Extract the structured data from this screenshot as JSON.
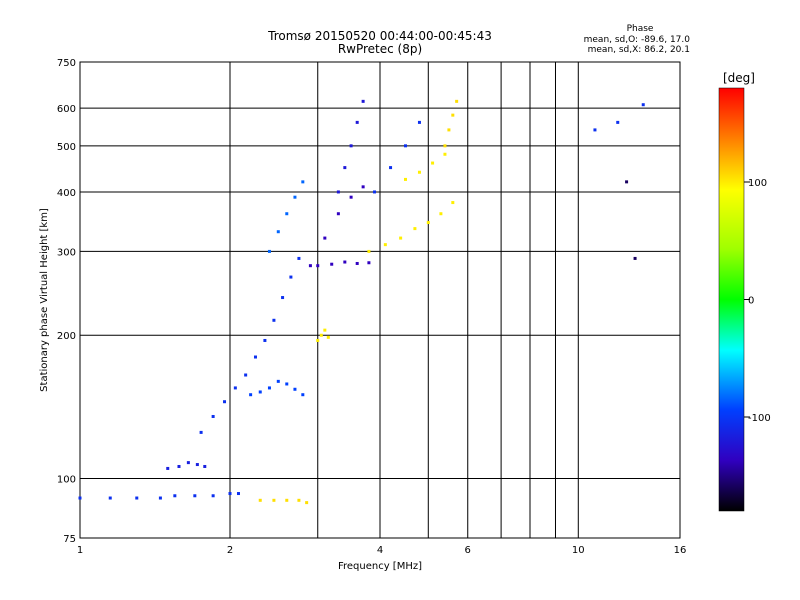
{
  "chart_data": {
    "type": "scatter",
    "title": "Tromsø 20150520 00:44:00-00:45:43",
    "subtitle": "RwPretec (8p)",
    "xlabel": "Frequency [MHz]",
    "ylabel": "Stationary phase Virtual Height [km]",
    "x_scale": "log",
    "y_scale": "log",
    "xlim": [
      1,
      16
    ],
    "ylim": [
      75,
      750
    ],
    "x_ticks": [
      1,
      2,
      4,
      6,
      10,
      16
    ],
    "x_tick_labels": [
      "1",
      "2",
      "4",
      "6",
      "10",
      "16"
    ],
    "x_grid_lines": [
      1,
      2,
      3,
      4,
      5,
      6,
      7,
      8,
      9,
      10,
      16
    ],
    "y_ticks": [
      75,
      100,
      200,
      300,
      400,
      500,
      600,
      750
    ],
    "y_tick_labels": [
      "75",
      "100",
      "200",
      "300",
      "400",
      "500",
      "600",
      "750"
    ],
    "grid": true,
    "phase_info": {
      "heading": "Phase",
      "o_line": "mean, sd,O: -89.6, 17.0",
      "x_line": "mean, sd,X:  86.2, 20.1"
    },
    "colorbar": {
      "label": "[deg]",
      "range": [
        -180,
        180
      ],
      "ticks": [
        100,
        0,
        -100
      ],
      "tick_labels": [
        "100",
        "0",
        "-100"
      ]
    },
    "series": [
      {
        "x": [
          1.0,
          1.15,
          1.3,
          1.45,
          1.55,
          1.7,
          1.85,
          2.0,
          2.08
        ],
        "y": [
          91,
          91,
          91,
          91,
          92,
          92,
          92,
          93,
          93
        ],
        "phase": -110
      },
      {
        "x": [
          1.5,
          1.58,
          1.65,
          1.72,
          1.78
        ],
        "y": [
          105,
          106,
          108,
          107,
          106
        ],
        "phase": -120
      },
      {
        "x": [
          1.75,
          1.85,
          1.95,
          2.05,
          2.15,
          2.25,
          2.35,
          2.45,
          2.55,
          2.65,
          2.75
        ],
        "y": [
          125,
          135,
          145,
          155,
          165,
          180,
          195,
          215,
          240,
          265,
          290
        ],
        "phase": -110
      },
      {
        "x": [
          2.4,
          2.5,
          2.6,
          2.7,
          2.8
        ],
        "y": [
          300,
          330,
          360,
          390,
          420
        ],
        "phase": -90
      },
      {
        "x": [
          2.2,
          2.3,
          2.4,
          2.5,
          2.6,
          2.7,
          2.8
        ],
        "y": [
          150,
          152,
          155,
          160,
          158,
          154,
          150
        ],
        "phase": -100
      },
      {
        "x": [
          2.3,
          2.45,
          2.6,
          2.75,
          2.85
        ],
        "y": [
          90,
          90,
          90,
          90,
          89
        ],
        "phase": 110
      },
      {
        "x": [
          3.0,
          3.05,
          3.1,
          3.15
        ],
        "y": [
          195,
          200,
          205,
          198
        ],
        "phase": 105
      },
      {
        "x": [
          2.9,
          3.1,
          3.3,
          3.5,
          3.7
        ],
        "y": [
          280,
          320,
          360,
          390,
          410
        ],
        "phase": -140
      },
      {
        "x": [
          3.0,
          3.2,
          3.4,
          3.6,
          3.8
        ],
        "y": [
          280,
          282,
          285,
          283,
          284
        ],
        "phase": -140
      },
      {
        "x": [
          3.3,
          3.4,
          3.5,
          3.6,
          3.7
        ],
        "y": [
          400,
          450,
          500,
          560,
          620
        ],
        "phase": -125
      },
      {
        "x": [
          3.8,
          4.1,
          4.4,
          4.7,
          5.0,
          5.3,
          5.6
        ],
        "y": [
          300,
          310,
          320,
          335,
          345,
          360,
          380
        ],
        "phase": 105
      },
      {
        "x": [
          4.5,
          4.8,
          5.1,
          5.4
        ],
        "y": [
          425,
          440,
          460,
          480
        ],
        "phase": 105
      },
      {
        "x": [
          5.4,
          5.5,
          5.6,
          5.7
        ],
        "y": [
          500,
          540,
          580,
          620
        ],
        "phase": 110
      },
      {
        "x": [
          3.9,
          4.2,
          4.5,
          4.8
        ],
        "y": [
          400,
          450,
          500,
          560
        ],
        "phase": -110
      },
      {
        "x": [
          10.8,
          12.0,
          13.5
        ],
        "y": [
          540,
          560,
          610
        ],
        "phase": -110
      },
      {
        "x": [
          12.5,
          13.0
        ],
        "y": [
          420,
          290
        ],
        "phase": -160
      }
    ]
  }
}
